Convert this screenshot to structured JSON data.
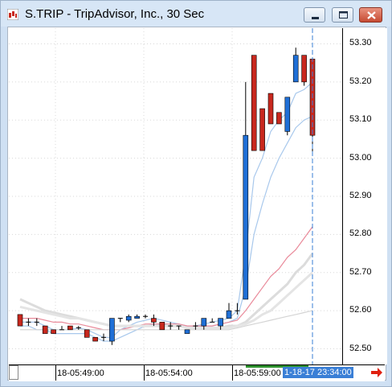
{
  "window": {
    "title": "S.TRIP - TripAdvisor, Inc., 30 Sec"
  },
  "icons": {
    "app": "chart-icon",
    "minimize": "minimize-icon",
    "maximize": "maximize-icon",
    "close": "close-icon",
    "scroll": "arrow-right-icon"
  },
  "colors": {
    "up": "#1f6fd6",
    "down": "#c8281e",
    "ma_light_blue": "#a8c8ec",
    "ma_pink": "#e98a9a",
    "ma_gray": "#dcdcdc",
    "cursor": "#3a7fd6"
  },
  "axis": {
    "y_ticks": [
      "53.30",
      "53.20",
      "53.10",
      "53.00",
      "52.90",
      "52.80",
      "52.70",
      "52.60",
      "52.50"
    ]
  },
  "time_axis": {
    "labels": [
      "18-05:49:00",
      "18-05:54:00",
      "18-05:59:00"
    ],
    "current": "1-18-17 23:34:00"
  },
  "chart_data": {
    "type": "candlestick",
    "ylim": [
      52.48,
      53.32
    ],
    "grid": true,
    "candles": [
      {
        "dir": "down",
        "open": 52.59,
        "close": 52.56,
        "high": 52.59,
        "low": 52.56
      },
      {
        "dir": "flat",
        "open": 52.57,
        "close": 52.57,
        "high": 52.58,
        "low": 52.56
      },
      {
        "dir": "flat",
        "open": 52.57,
        "close": 52.57,
        "high": 52.58,
        "low": 52.56
      },
      {
        "dir": "down",
        "open": 52.56,
        "close": 52.54,
        "high": 52.56,
        "low": 52.54
      },
      {
        "dir": "down",
        "open": 52.55,
        "close": 52.54,
        "high": 52.55,
        "low": 52.54
      },
      {
        "dir": "flat",
        "open": 52.55,
        "close": 52.55,
        "high": 52.56,
        "low": 52.55
      },
      {
        "dir": "down",
        "open": 52.56,
        "close": 52.55,
        "high": 52.56,
        "low": 52.55
      },
      {
        "dir": "flat",
        "open": 52.555,
        "close": 52.555,
        "high": 52.56,
        "low": 52.55
      },
      {
        "dir": "down",
        "open": 52.55,
        "close": 52.53,
        "high": 52.55,
        "low": 52.53
      },
      {
        "dir": "down",
        "open": 52.53,
        "close": 52.52,
        "high": 52.53,
        "low": 52.52
      },
      {
        "dir": "flat",
        "open": 52.53,
        "close": 52.53,
        "high": 52.54,
        "low": 52.52
      },
      {
        "dir": "up",
        "open": 52.52,
        "close": 52.58,
        "high": 52.58,
        "low": 52.51
      },
      {
        "dir": "flat",
        "open": 52.58,
        "close": 52.58,
        "high": 52.58,
        "low": 52.57
      },
      {
        "dir": "up",
        "open": 52.575,
        "close": 52.585,
        "high": 52.59,
        "low": 52.57
      },
      {
        "dir": "up",
        "open": 52.58,
        "close": 52.585,
        "high": 52.59,
        "low": 52.58
      },
      {
        "dir": "flat",
        "open": 52.585,
        "close": 52.585,
        "high": 52.59,
        "low": 52.58
      },
      {
        "dir": "down",
        "open": 52.58,
        "close": 52.57,
        "high": 52.59,
        "low": 52.56
      },
      {
        "dir": "down",
        "open": 52.57,
        "close": 52.55,
        "high": 52.57,
        "low": 52.55
      },
      {
        "dir": "flat",
        "open": 52.56,
        "close": 52.56,
        "high": 52.57,
        "low": 52.55
      },
      {
        "dir": "flat",
        "open": 52.56,
        "close": 52.56,
        "high": 52.56,
        "low": 52.55
      },
      {
        "dir": "up",
        "open": 52.54,
        "close": 52.55,
        "high": 52.55,
        "low": 52.54
      },
      {
        "dir": "flat",
        "open": 52.56,
        "close": 52.56,
        "high": 52.57,
        "low": 52.55
      },
      {
        "dir": "up",
        "open": 52.56,
        "close": 52.58,
        "high": 52.58,
        "low": 52.55
      },
      {
        "dir": "flat",
        "open": 52.57,
        "close": 52.57,
        "high": 52.58,
        "low": 52.57
      },
      {
        "dir": "up",
        "open": 52.56,
        "close": 52.58,
        "high": 52.58,
        "low": 52.55
      },
      {
        "dir": "up",
        "open": 52.58,
        "close": 52.6,
        "high": 52.62,
        "low": 52.58
      },
      {
        "dir": "flat",
        "open": 52.6,
        "close": 52.6,
        "high": 52.62,
        "low": 52.59
      },
      {
        "dir": "up",
        "open": 52.63,
        "close": 53.06,
        "high": 53.2,
        "low": 52.63
      },
      {
        "dir": "down",
        "open": 53.27,
        "close": 53.02,
        "high": 53.27,
        "low": 53.02
      },
      {
        "dir": "down",
        "open": 53.13,
        "close": 53.02,
        "high": 53.13,
        "low": 53.02
      },
      {
        "dir": "down",
        "open": 53.17,
        "close": 53.09,
        "high": 53.17,
        "low": 53.09
      },
      {
        "dir": "down",
        "open": 53.12,
        "close": 53.09,
        "high": 53.12,
        "low": 53.09
      },
      {
        "dir": "up",
        "open": 53.07,
        "close": 53.16,
        "high": 53.16,
        "low": 53.06
      },
      {
        "dir": "up",
        "open": 53.2,
        "close": 53.27,
        "high": 53.29,
        "low": 53.2
      },
      {
        "dir": "down",
        "open": 53.27,
        "close": 53.2,
        "high": 53.27,
        "low": 53.19
      },
      {
        "dir": "down",
        "open": 53.26,
        "close": 53.06,
        "high": 53.26,
        "low": 53.01
      }
    ],
    "overlays": [
      {
        "name": "",
        "color": "#a8c8ec",
        "values": [
          52.57,
          52.57,
          52.57,
          52.56,
          52.55,
          52.55,
          52.55,
          52.555,
          52.55,
          52.54,
          52.53,
          52.53,
          52.55,
          52.56,
          52.57,
          52.575,
          52.58,
          52.575,
          52.57,
          52.565,
          52.56,
          52.56,
          52.565,
          52.57,
          52.575,
          52.58,
          52.6,
          52.75,
          52.95,
          53.0,
          53.07,
          53.1,
          53.12,
          53.17,
          53.18,
          53.2
        ]
      },
      {
        "name": "",
        "color": "#a8c8ec",
        "values": [
          52.56,
          52.56,
          52.55,
          52.55,
          52.54,
          52.54,
          52.54,
          52.54,
          52.54,
          52.53,
          52.52,
          52.52,
          52.53,
          52.54,
          52.55,
          52.56,
          52.565,
          52.565,
          52.56,
          52.56,
          52.555,
          52.555,
          52.56,
          52.56,
          52.565,
          52.57,
          52.58,
          52.66,
          52.8,
          52.88,
          52.95,
          53.0,
          53.04,
          53.08,
          53.1,
          53.11
        ]
      },
      {
        "name": "",
        "color": "#e98a9a",
        "values": [
          52.58,
          52.58,
          52.58,
          52.575,
          52.57,
          52.57,
          52.565,
          52.565,
          52.56,
          52.555,
          52.55,
          52.55,
          52.55,
          52.555,
          52.56,
          52.565,
          52.565,
          52.565,
          52.565,
          52.565,
          52.56,
          52.56,
          52.56,
          52.56,
          52.565,
          52.57,
          52.575,
          52.6,
          52.63,
          52.66,
          52.69,
          52.71,
          52.74,
          52.76,
          52.79,
          52.82
        ]
      },
      {
        "name": "",
        "color": "#dcdcdc",
        "values": [
          52.63,
          52.62,
          52.61,
          52.6,
          52.595,
          52.59,
          52.585,
          52.58,
          52.575,
          52.57,
          52.565,
          52.56,
          52.56,
          52.56,
          52.56,
          52.56,
          52.56,
          52.56,
          52.56,
          52.56,
          52.555,
          52.555,
          52.555,
          52.555,
          52.555,
          52.56,
          52.56,
          52.57,
          52.59,
          52.61,
          52.63,
          52.65,
          52.67,
          52.7,
          52.72,
          52.75
        ]
      },
      {
        "name": "",
        "color": "#e4e4e4",
        "values": [
          52.61,
          52.605,
          52.6,
          52.595,
          52.59,
          52.585,
          52.58,
          52.58,
          52.575,
          52.57,
          52.565,
          52.56,
          52.56,
          52.56,
          52.56,
          52.56,
          52.56,
          52.56,
          52.56,
          52.56,
          52.555,
          52.555,
          52.555,
          52.555,
          52.555,
          52.555,
          52.56,
          52.565,
          52.575,
          52.59,
          52.6,
          52.62,
          52.64,
          52.66,
          52.68,
          52.7
        ]
      },
      {
        "name": "",
        "color": "#d4d4d4",
        "values": [
          52.55,
          52.55,
          52.55,
          52.55,
          52.55,
          52.55,
          52.55,
          52.55,
          52.55,
          52.55,
          52.55,
          52.55,
          52.55,
          52.55,
          52.55,
          52.55,
          52.55,
          52.55,
          52.55,
          52.55,
          52.55,
          52.55,
          52.55,
          52.55,
          52.55,
          52.55,
          52.555,
          52.56,
          52.565,
          52.57,
          52.575,
          52.58,
          52.585,
          52.59,
          52.595,
          52.6
        ]
      }
    ]
  }
}
